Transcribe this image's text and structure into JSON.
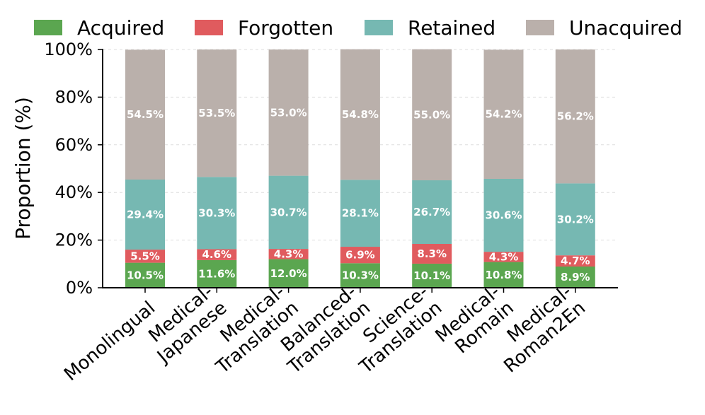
{
  "chart_data": {
    "type": "bar",
    "stacked": true,
    "title": "",
    "xlabel": "",
    "ylabel": "Proportion (%)",
    "ylim": [
      0,
      100
    ],
    "yticks": [
      "0%",
      "20%",
      "40%",
      "60%",
      "80%",
      "100%"
    ],
    "ytick_values": [
      0,
      20,
      40,
      60,
      80,
      100
    ],
    "grid": "horizontal dashed",
    "legend_position": "top",
    "categories": [
      [
        "Monolingual"
      ],
      [
        "Medical-",
        "Japanese"
      ],
      [
        "Medical-",
        "Translation"
      ],
      [
        "Balanced-",
        "Translation"
      ],
      [
        "Science-",
        "Translation"
      ],
      [
        "Medical-",
        "Romain"
      ],
      [
        "Medical-",
        "Roman2En"
      ]
    ],
    "series": [
      {
        "name": "Acquired",
        "color": "#5ba650",
        "values": [
          10.5,
          11.6,
          12.0,
          10.3,
          10.1,
          10.8,
          8.9
        ],
        "labels": [
          "10.5%",
          "11.6%",
          "12.0%",
          "10.3%",
          "10.1%",
          "10.8%",
          "8.9%"
        ]
      },
      {
        "name": "Forgotten",
        "color": "#e05b5e",
        "values": [
          5.5,
          4.6,
          4.3,
          6.9,
          8.3,
          4.3,
          4.7
        ],
        "labels": [
          "5.5%",
          "4.6%",
          "4.3%",
          "6.9%",
          "8.3%",
          "4.3%",
          "4.7%"
        ]
      },
      {
        "name": "Retained",
        "color": "#76b8b2",
        "values": [
          29.4,
          30.3,
          30.7,
          28.1,
          26.7,
          30.6,
          30.2
        ],
        "labels": [
          "29.4%",
          "30.3%",
          "30.7%",
          "28.1%",
          "26.7%",
          "30.6%",
          "30.2%"
        ]
      },
      {
        "name": "Unacquired",
        "color": "#bab0ab",
        "values": [
          54.5,
          53.5,
          53.0,
          54.8,
          55.0,
          54.2,
          56.2
        ],
        "labels": [
          "54.5%",
          "53.5%",
          "53.0%",
          "54.8%",
          "55.0%",
          "54.2%",
          "56.2%"
        ]
      }
    ]
  }
}
